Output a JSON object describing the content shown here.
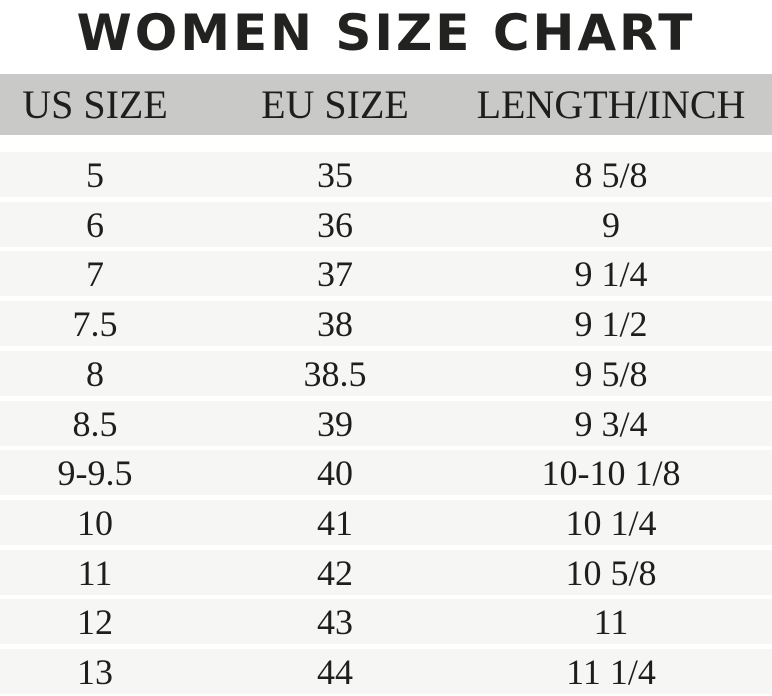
{
  "title": "WOMEN SIZE CHART",
  "chart_data": {
    "type": "table",
    "title": "WOMEN SIZE CHART",
    "columns": [
      "US SIZE",
      "EU SIZE",
      "LENGTH/INCH"
    ],
    "rows": [
      [
        "5",
        "35",
        "8 5/8"
      ],
      [
        "6",
        "36",
        "9"
      ],
      [
        "7",
        "37",
        "9 1/4"
      ],
      [
        "7.5",
        "38",
        "9 1/2"
      ],
      [
        "8",
        "38.5",
        "9 5/8"
      ],
      [
        "8.5",
        "39",
        "9 3/4"
      ],
      [
        "9-9.5",
        "40",
        "10-10 1/8"
      ],
      [
        "10",
        "41",
        "10 1/4"
      ],
      [
        "11",
        "42",
        "10 5/8"
      ],
      [
        "12",
        "43",
        "11"
      ],
      [
        "13",
        "44",
        "11 1/4"
      ]
    ],
    "colors": {
      "header_bg": "#c9c9c7",
      "row_bg": "#f6f6f4",
      "text": "#1e1e1e"
    }
  }
}
